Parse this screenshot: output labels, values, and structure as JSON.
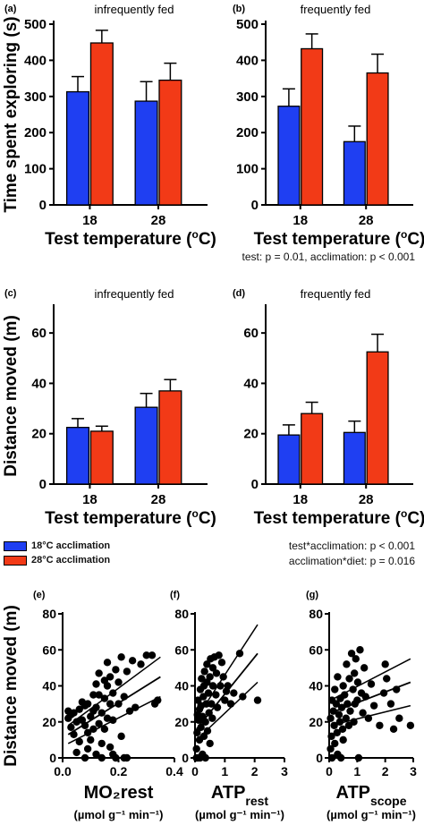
{
  "colors": {
    "acclim18": "#1f3ff2",
    "acclim28": "#f23a17",
    "axis": "#000000",
    "point": "#000000"
  },
  "notes": {
    "top": "test: p = 0.01, acclimation: p < 0.001",
    "middle_line1": "test*acclimation: p < 0.001",
    "middle_line2": "acclimation*diet: p = 0.016"
  },
  "legend": {
    "entries": [
      "18°C acclimation",
      "28°C acclimation"
    ]
  },
  "chart_data": [
    {
      "type": "bar",
      "panel": "(a)",
      "title": "infrequently fed",
      "ylabel": "Time spent exploring (s)",
      "xlabel": "Test temperature (ºC)",
      "categories": [
        "18",
        "28"
      ],
      "ylim": [
        0,
        500
      ],
      "yticks": [
        0,
        100,
        200,
        300,
        400,
        500
      ],
      "series": [
        {
          "name": "18°C acclimation",
          "values": [
            313,
            287
          ],
          "errors": [
            42,
            54
          ]
        },
        {
          "name": "28°C acclimation",
          "values": [
            448,
            345
          ],
          "errors": [
            35,
            47
          ]
        }
      ]
    },
    {
      "type": "bar",
      "panel": "(b)",
      "title": "frequently fed",
      "ylabel": "",
      "xlabel": "Test temperature (ºC)",
      "categories": [
        "18",
        "28"
      ],
      "ylim": [
        0,
        500
      ],
      "yticks": [
        0,
        100,
        200,
        300,
        400,
        500
      ],
      "series": [
        {
          "name": "18°C acclimation",
          "values": [
            273,
            175
          ],
          "errors": [
            48,
            43
          ]
        },
        {
          "name": "28°C acclimation",
          "values": [
            432,
            365
          ],
          "errors": [
            41,
            52
          ]
        }
      ]
    },
    {
      "type": "bar",
      "panel": "(c)",
      "title": "infrequently fed",
      "ylabel": "Distance moved (m)",
      "xlabel": "Test temperature (ºC)",
      "categories": [
        "18",
        "28"
      ],
      "ylim": [
        0,
        70
      ],
      "yticks": [
        0,
        20,
        40,
        60
      ],
      "series": [
        {
          "name": "18°C acclimation",
          "values": [
            22.5,
            30.5
          ],
          "errors": [
            3.5,
            5.5
          ]
        },
        {
          "name": "28°C acclimation",
          "values": [
            21,
            37
          ],
          "errors": [
            2,
            4.5
          ]
        }
      ]
    },
    {
      "type": "bar",
      "panel": "(d)",
      "title": "frequently fed",
      "ylabel": "",
      "xlabel": "Test temperature (ºC)",
      "categories": [
        "18",
        "28"
      ],
      "ylim": [
        0,
        70
      ],
      "yticks": [
        0,
        20,
        40,
        60
      ],
      "series": [
        {
          "name": "18°C acclimation",
          "values": [
            19.5,
            20.5
          ],
          "errors": [
            4,
            4.5
          ]
        },
        {
          "name": "28°C acclimation",
          "values": [
            28,
            52.5
          ],
          "errors": [
            4.5,
            7
          ]
        }
      ]
    },
    {
      "type": "scatter",
      "panel": "(e)",
      "ylabel": "Distance moved (m)",
      "xlabel": "MO₂rest",
      "xunit": "(µmol g⁻¹ min⁻¹)",
      "xlim": [
        0,
        0.4
      ],
      "xticks": [
        0.0,
        0.2,
        0.4
      ],
      "ylim": [
        0,
        80
      ],
      "yticks": [
        0,
        20,
        40,
        60,
        80
      ],
      "fit": {
        "x": [
          0.02,
          0.35
        ],
        "y": [
          13,
          45
        ],
        "upper": [
          18,
          56
        ],
        "lower": [
          8,
          34
        ]
      },
      "points": [
        [
          0.02,
          26
        ],
        [
          0.02,
          22
        ],
        [
          0.03,
          17
        ],
        [
          0.03,
          24
        ],
        [
          0.04,
          13
        ],
        [
          0.04,
          25
        ],
        [
          0.05,
          3
        ],
        [
          0.05,
          20
        ],
        [
          0.06,
          9
        ],
        [
          0.06,
          27
        ],
        [
          0.07,
          31
        ],
        [
          0.07,
          21
        ],
        [
          0.08,
          0
        ],
        [
          0.08,
          18
        ],
        [
          0.08,
          29
        ],
        [
          0.09,
          14
        ],
        [
          0.09,
          30
        ],
        [
          0.09,
          5
        ],
        [
          0.1,
          23
        ],
        [
          0.1,
          10
        ],
        [
          0.11,
          26
        ],
        [
          0.11,
          35
        ],
        [
          0.11,
          16
        ],
        [
          0.12,
          41
        ],
        [
          0.12,
          2
        ],
        [
          0.12,
          28
        ],
        [
          0.13,
          19
        ],
        [
          0.13,
          35
        ],
        [
          0.13,
          47
        ],
        [
          0.14,
          8
        ],
        [
          0.14,
          0
        ],
        [
          0.14,
          25
        ],
        [
          0.15,
          43
        ],
        [
          0.15,
          33
        ],
        [
          0.15,
          16
        ],
        [
          0.16,
          40
        ],
        [
          0.16,
          53
        ],
        [
          0.16,
          22
        ],
        [
          0.17,
          30
        ],
        [
          0.17,
          6
        ],
        [
          0.17,
          45
        ],
        [
          0.18,
          2
        ],
        [
          0.18,
          36
        ],
        [
          0.18,
          21
        ],
        [
          0.19,
          49
        ],
        [
          0.19,
          0
        ],
        [
          0.2,
          42
        ],
        [
          0.2,
          30
        ],
        [
          0.21,
          56
        ],
        [
          0.21,
          12
        ],
        [
          0.22,
          0
        ],
        [
          0.22,
          34
        ],
        [
          0.23,
          0
        ],
        [
          0.23,
          48
        ],
        [
          0.24,
          26
        ],
        [
          0.25,
          54
        ],
        [
          0.26,
          28
        ],
        [
          0.28,
          52
        ],
        [
          0.3,
          57
        ],
        [
          0.32,
          57
        ],
        [
          0.33,
          30
        ],
        [
          0.34,
          32
        ]
      ]
    },
    {
      "type": "scatter",
      "panel": "(f)",
      "ylabel": "",
      "xlabel": "ATP",
      "xsub": "rest",
      "xunit": "(µmol g⁻¹ min⁻¹)",
      "xlim": [
        0,
        3
      ],
      "xticks": [
        0,
        1,
        2,
        3
      ],
      "ylim": [
        0,
        80
      ],
      "yticks": [
        0,
        20,
        40,
        60,
        80
      ],
      "fit": {
        "x": [
          0.05,
          2.1
        ],
        "y": [
          16,
          58
        ],
        "upper": [
          22,
          74
        ],
        "lower": [
          10,
          42
        ]
      },
      "points": [
        [
          0.05,
          0
        ],
        [
          0.05,
          5
        ],
        [
          0.07,
          14
        ],
        [
          0.08,
          24
        ],
        [
          0.1,
          0
        ],
        [
          0.1,
          32
        ],
        [
          0.12,
          21
        ],
        [
          0.15,
          10
        ],
        [
          0.15,
          27
        ],
        [
          0.17,
          0
        ],
        [
          0.18,
          38
        ],
        [
          0.2,
          17
        ],
        [
          0.2,
          29
        ],
        [
          0.22,
          44
        ],
        [
          0.25,
          23
        ],
        [
          0.25,
          2
        ],
        [
          0.28,
          34
        ],
        [
          0.3,
          40
        ],
        [
          0.3,
          12
        ],
        [
          0.32,
          48
        ],
        [
          0.35,
          20
        ],
        [
          0.35,
          0
        ],
        [
          0.38,
          30
        ],
        [
          0.4,
          42
        ],
        [
          0.4,
          52
        ],
        [
          0.42,
          15
        ],
        [
          0.45,
          36
        ],
        [
          0.47,
          25
        ],
        [
          0.5,
          45
        ],
        [
          0.5,
          8
        ],
        [
          0.52,
          55
        ],
        [
          0.55,
          30
        ],
        [
          0.58,
          22
        ],
        [
          0.6,
          50
        ],
        [
          0.6,
          40
        ],
        [
          0.65,
          56
        ],
        [
          0.7,
          35
        ],
        [
          0.72,
          47
        ],
        [
          0.75,
          28
        ],
        [
          0.8,
          57
        ],
        [
          0.85,
          40
        ],
        [
          0.9,
          53
        ],
        [
          0.95,
          45
        ],
        [
          1.0,
          32
        ],
        [
          1.05,
          37
        ],
        [
          1.1,
          40
        ],
        [
          1.2,
          30
        ],
        [
          1.3,
          36
        ],
        [
          1.5,
          58
        ],
        [
          1.6,
          34
        ],
        [
          2.1,
          32
        ]
      ]
    },
    {
      "type": "scatter",
      "panel": "(g)",
      "ylabel": "",
      "xlabel": "ATP",
      "xsub": "scope",
      "xunit": "(µmol g⁻¹ min⁻¹)",
      "xlim": [
        0,
        3
      ],
      "xticks": [
        0,
        1,
        2,
        3
      ],
      "ylim": [
        0,
        80
      ],
      "yticks": [
        0,
        20,
        40,
        60,
        80
      ],
      "fit": {
        "x": [
          0.05,
          2.9
        ],
        "y": [
          25,
          42
        ],
        "upper": [
          32,
          55
        ],
        "lower": [
          18,
          29
        ]
      },
      "points": [
        [
          0.05,
          5
        ],
        [
          0.05,
          22
        ],
        [
          0.08,
          12
        ],
        [
          0.1,
          32
        ],
        [
          0.1,
          0
        ],
        [
          0.15,
          26
        ],
        [
          0.18,
          18
        ],
        [
          0.2,
          38
        ],
        [
          0.2,
          8
        ],
        [
          0.25,
          30
        ],
        [
          0.28,
          14
        ],
        [
          0.3,
          45
        ],
        [
          0.3,
          2
        ],
        [
          0.35,
          24
        ],
        [
          0.38,
          20
        ],
        [
          0.4,
          33
        ],
        [
          0.42,
          0
        ],
        [
          0.45,
          28
        ],
        [
          0.48,
          16
        ],
        [
          0.5,
          40
        ],
        [
          0.5,
          10
        ],
        [
          0.55,
          35
        ],
        [
          0.6,
          22
        ],
        [
          0.62,
          52
        ],
        [
          0.65,
          30
        ],
        [
          0.7,
          18
        ],
        [
          0.72,
          44
        ],
        [
          0.75,
          26
        ],
        [
          0.8,
          58
        ],
        [
          0.85,
          38
        ],
        [
          0.88,
          20
        ],
        [
          0.9,
          47
        ],
        [
          0.92,
          30
        ],
        [
          0.95,
          55
        ],
        [
          1.0,
          32
        ],
        [
          1.02,
          42
        ],
        [
          1.05,
          0
        ],
        [
          1.1,
          60
        ],
        [
          1.15,
          36
        ],
        [
          1.2,
          25
        ],
        [
          1.25,
          50
        ],
        [
          1.3,
          34
        ],
        [
          1.4,
          22
        ],
        [
          1.5,
          41
        ],
        [
          1.6,
          29
        ],
        [
          1.8,
          18
        ],
        [
          1.95,
          36
        ],
        [
          2.0,
          52
        ],
        [
          2.05,
          44
        ],
        [
          2.2,
          30
        ],
        [
          2.3,
          16
        ],
        [
          2.4,
          38
        ],
        [
          2.5,
          22
        ],
        [
          2.9,
          18
        ]
      ]
    }
  ]
}
